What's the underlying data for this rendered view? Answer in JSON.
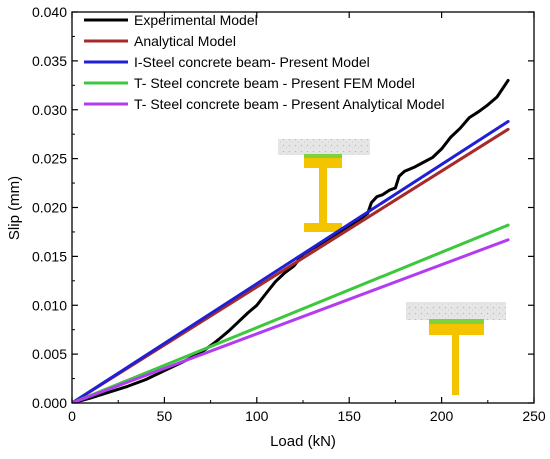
{
  "chart_data": {
    "type": "line",
    "xlabel": "Load (kN)",
    "ylabel": "Slip (mm)",
    "xlim": [
      0,
      250
    ],
    "ylim": [
      0,
      0.04
    ],
    "xticks": [
      0,
      50,
      100,
      150,
      200,
      250
    ],
    "xtick_labels": [
      "0",
      "50",
      "100",
      "150",
      "200",
      "250"
    ],
    "yticks": [
      0,
      0.005,
      0.01,
      0.015,
      0.02,
      0.025,
      0.03,
      0.035,
      0.04
    ],
    "ytick_labels": [
      "0.000",
      "0.005",
      "0.010",
      "0.015",
      "0.020",
      "0.025",
      "0.030",
      "0.035",
      "0.040"
    ],
    "grid": false,
    "legend_position": "top-left",
    "series": [
      {
        "name": "Experimental Model",
        "color": "#000000",
        "x": [
          0,
          10,
          20,
          30,
          40,
          50,
          60,
          70,
          76,
          80,
          85,
          90,
          95,
          100,
          105,
          110,
          115,
          120,
          125,
          130,
          135,
          140,
          145,
          150,
          155,
          160,
          162,
          165,
          168,
          172,
          175,
          177,
          180,
          185,
          190,
          195,
          200,
          205,
          210,
          215,
          220,
          225,
          230,
          236
        ],
        "y": [
          0,
          0.0005,
          0.0011,
          0.0017,
          0.0024,
          0.0033,
          0.0042,
          0.0052,
          0.006,
          0.0066,
          0.0074,
          0.0083,
          0.0092,
          0.01,
          0.0112,
          0.0124,
          0.0133,
          0.014,
          0.0152,
          0.0158,
          0.0163,
          0.0168,
          0.0174,
          0.018,
          0.0187,
          0.0194,
          0.0205,
          0.0211,
          0.0213,
          0.0218,
          0.022,
          0.0232,
          0.0237,
          0.0241,
          0.0246,
          0.0251,
          0.026,
          0.0272,
          0.0281,
          0.0292,
          0.0298,
          0.0305,
          0.0313,
          0.033
        ]
      },
      {
        "name": "Analytical Model",
        "color": "#a52a2a",
        "x": [
          0,
          236
        ],
        "y": [
          0,
          0.028
        ]
      },
      {
        "name": "I-Steel concrete beam- Present Model",
        "color": "#1f1fd6",
        "x": [
          0,
          236
        ],
        "y": [
          0,
          0.0288
        ]
      },
      {
        "name": "T- Steel concrete beam - Present FEM Model",
        "color": "#3cc83c",
        "x": [
          0,
          236
        ],
        "y": [
          0,
          0.0182
        ]
      },
      {
        "name": "T- Steel concrete beam - Present Analytical Model",
        "color": "#b43cf0",
        "x": [
          0,
          236
        ],
        "y": [
          0,
          0.0167
        ]
      }
    ]
  }
}
